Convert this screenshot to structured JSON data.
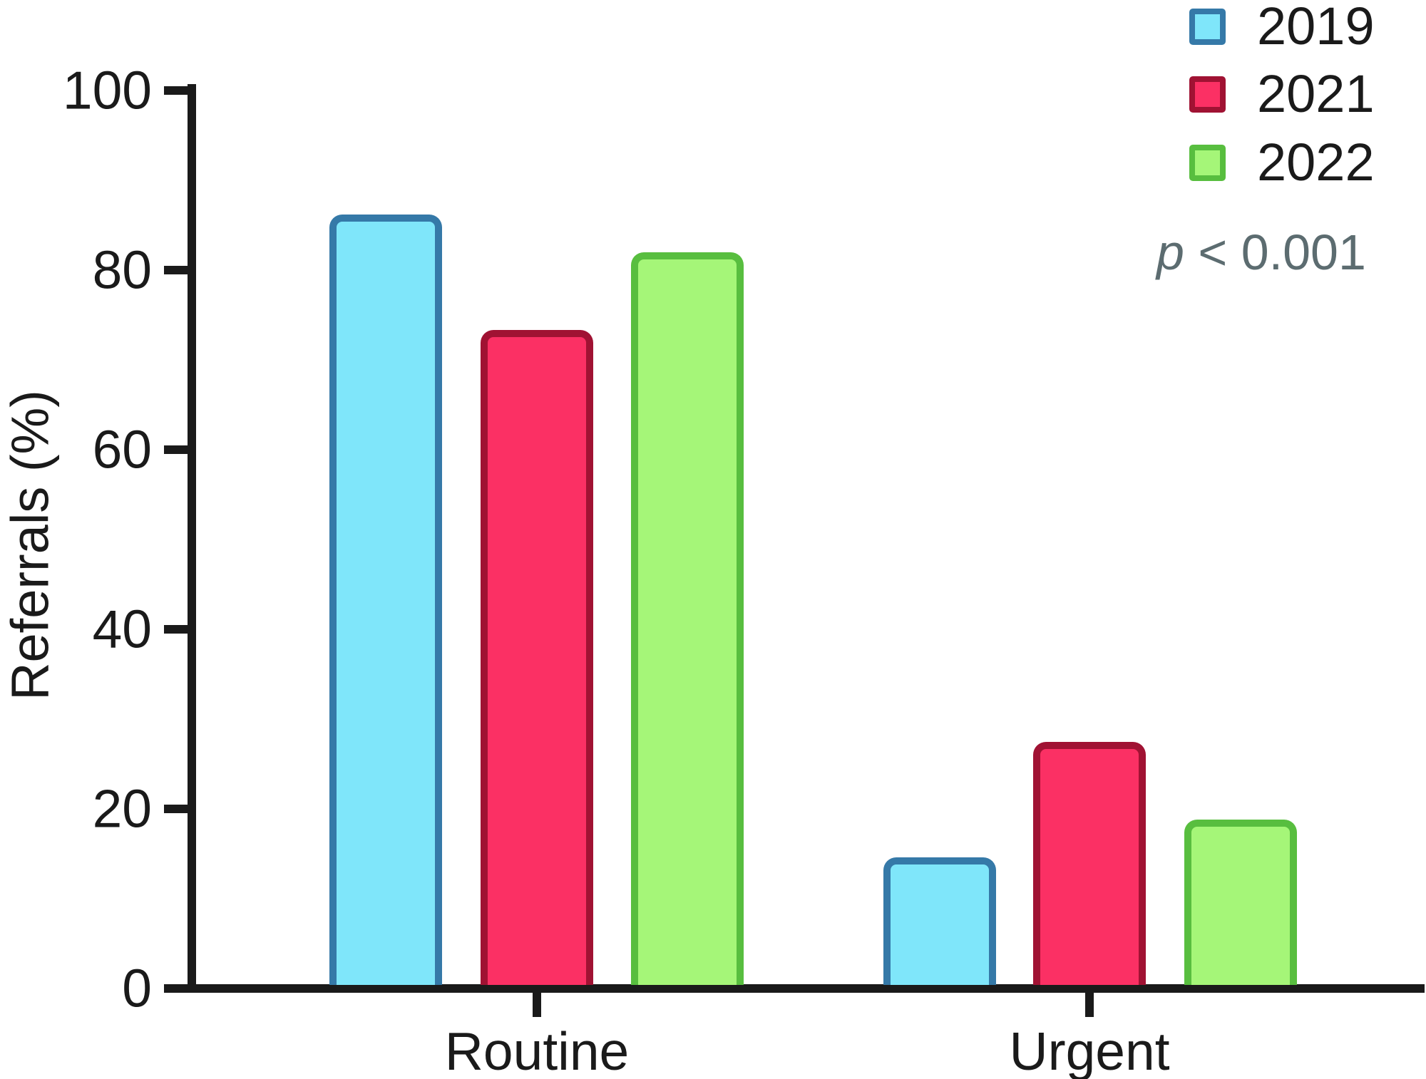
{
  "chart_data": {
    "type": "bar",
    "title": "",
    "xlabel": "",
    "ylabel": "Referrals (%)",
    "categories": [
      "Routine",
      "Urgent"
    ],
    "series": [
      {
        "name": "2019",
        "values": [
          85.8,
          14.2
        ],
        "fill": "#7FE6FA",
        "stroke": "#3579A8"
      },
      {
        "name": "2021",
        "values": [
          72.9,
          27.1
        ],
        "fill": "#FB3064",
        "stroke": "#A01233"
      },
      {
        "name": "2022",
        "values": [
          81.6,
          18.4
        ],
        "fill": "#A5F678",
        "stroke": "#58BE3F"
      }
    ],
    "ylim": [
      0,
      100
    ],
    "y_ticks": [
      0,
      20,
      40,
      60,
      80,
      100
    ],
    "grid": false,
    "legend_position": "top-right",
    "annotation": {
      "p_symbol": "p",
      "p_rest": " < 0.001",
      "color": "#5C6C70"
    },
    "axis_color": "#1A1A1A",
    "background": "#FFFFFF"
  }
}
